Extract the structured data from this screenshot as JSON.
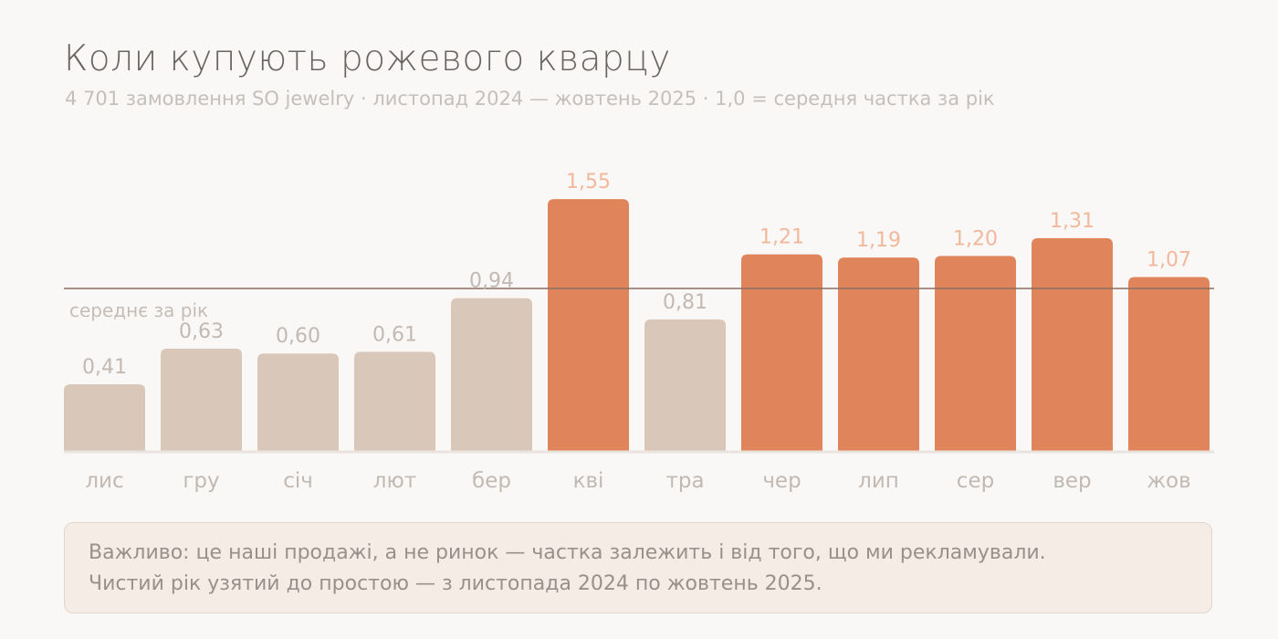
{
  "header": {
    "title": "Коли купують рожевого кварцу",
    "subtitle": "4 701 замовлення SO jewelry · листопад 2024 — жовтень 2025 · 1,0 = середня частка за рік"
  },
  "chart_data": {
    "type": "bar",
    "categories": [
      "лис",
      "гру",
      "січ",
      "лют",
      "бер",
      "кві",
      "тра",
      "чер",
      "лип",
      "сер",
      "вер",
      "жов"
    ],
    "values": [
      0.41,
      0.63,
      0.6,
      0.61,
      0.94,
      1.55,
      0.81,
      1.21,
      1.19,
      1.2,
      1.31,
      1.07
    ],
    "value_labels": [
      "0,41",
      "0,63",
      "0,60",
      "0,61",
      "0,94",
      "1,55",
      "0,81",
      "1,21",
      "1,19",
      "1,20",
      "1,31",
      "1,07"
    ],
    "reference_line": {
      "value": 1.0,
      "label": "середнє за рік"
    },
    "ylim": [
      0,
      1.55
    ],
    "grid": false,
    "colors": {
      "above_average": "#e0855b",
      "below_average": "#d9c8b9",
      "reference_line": "#8a6e62"
    }
  },
  "note": {
    "line1": "Важливо: це наші продажі, а не ринок — частка залежить і від того, що ми рекламували.",
    "line2": "Чистий рік узятий до простою — з листопада 2024 по жовтень 2025."
  }
}
